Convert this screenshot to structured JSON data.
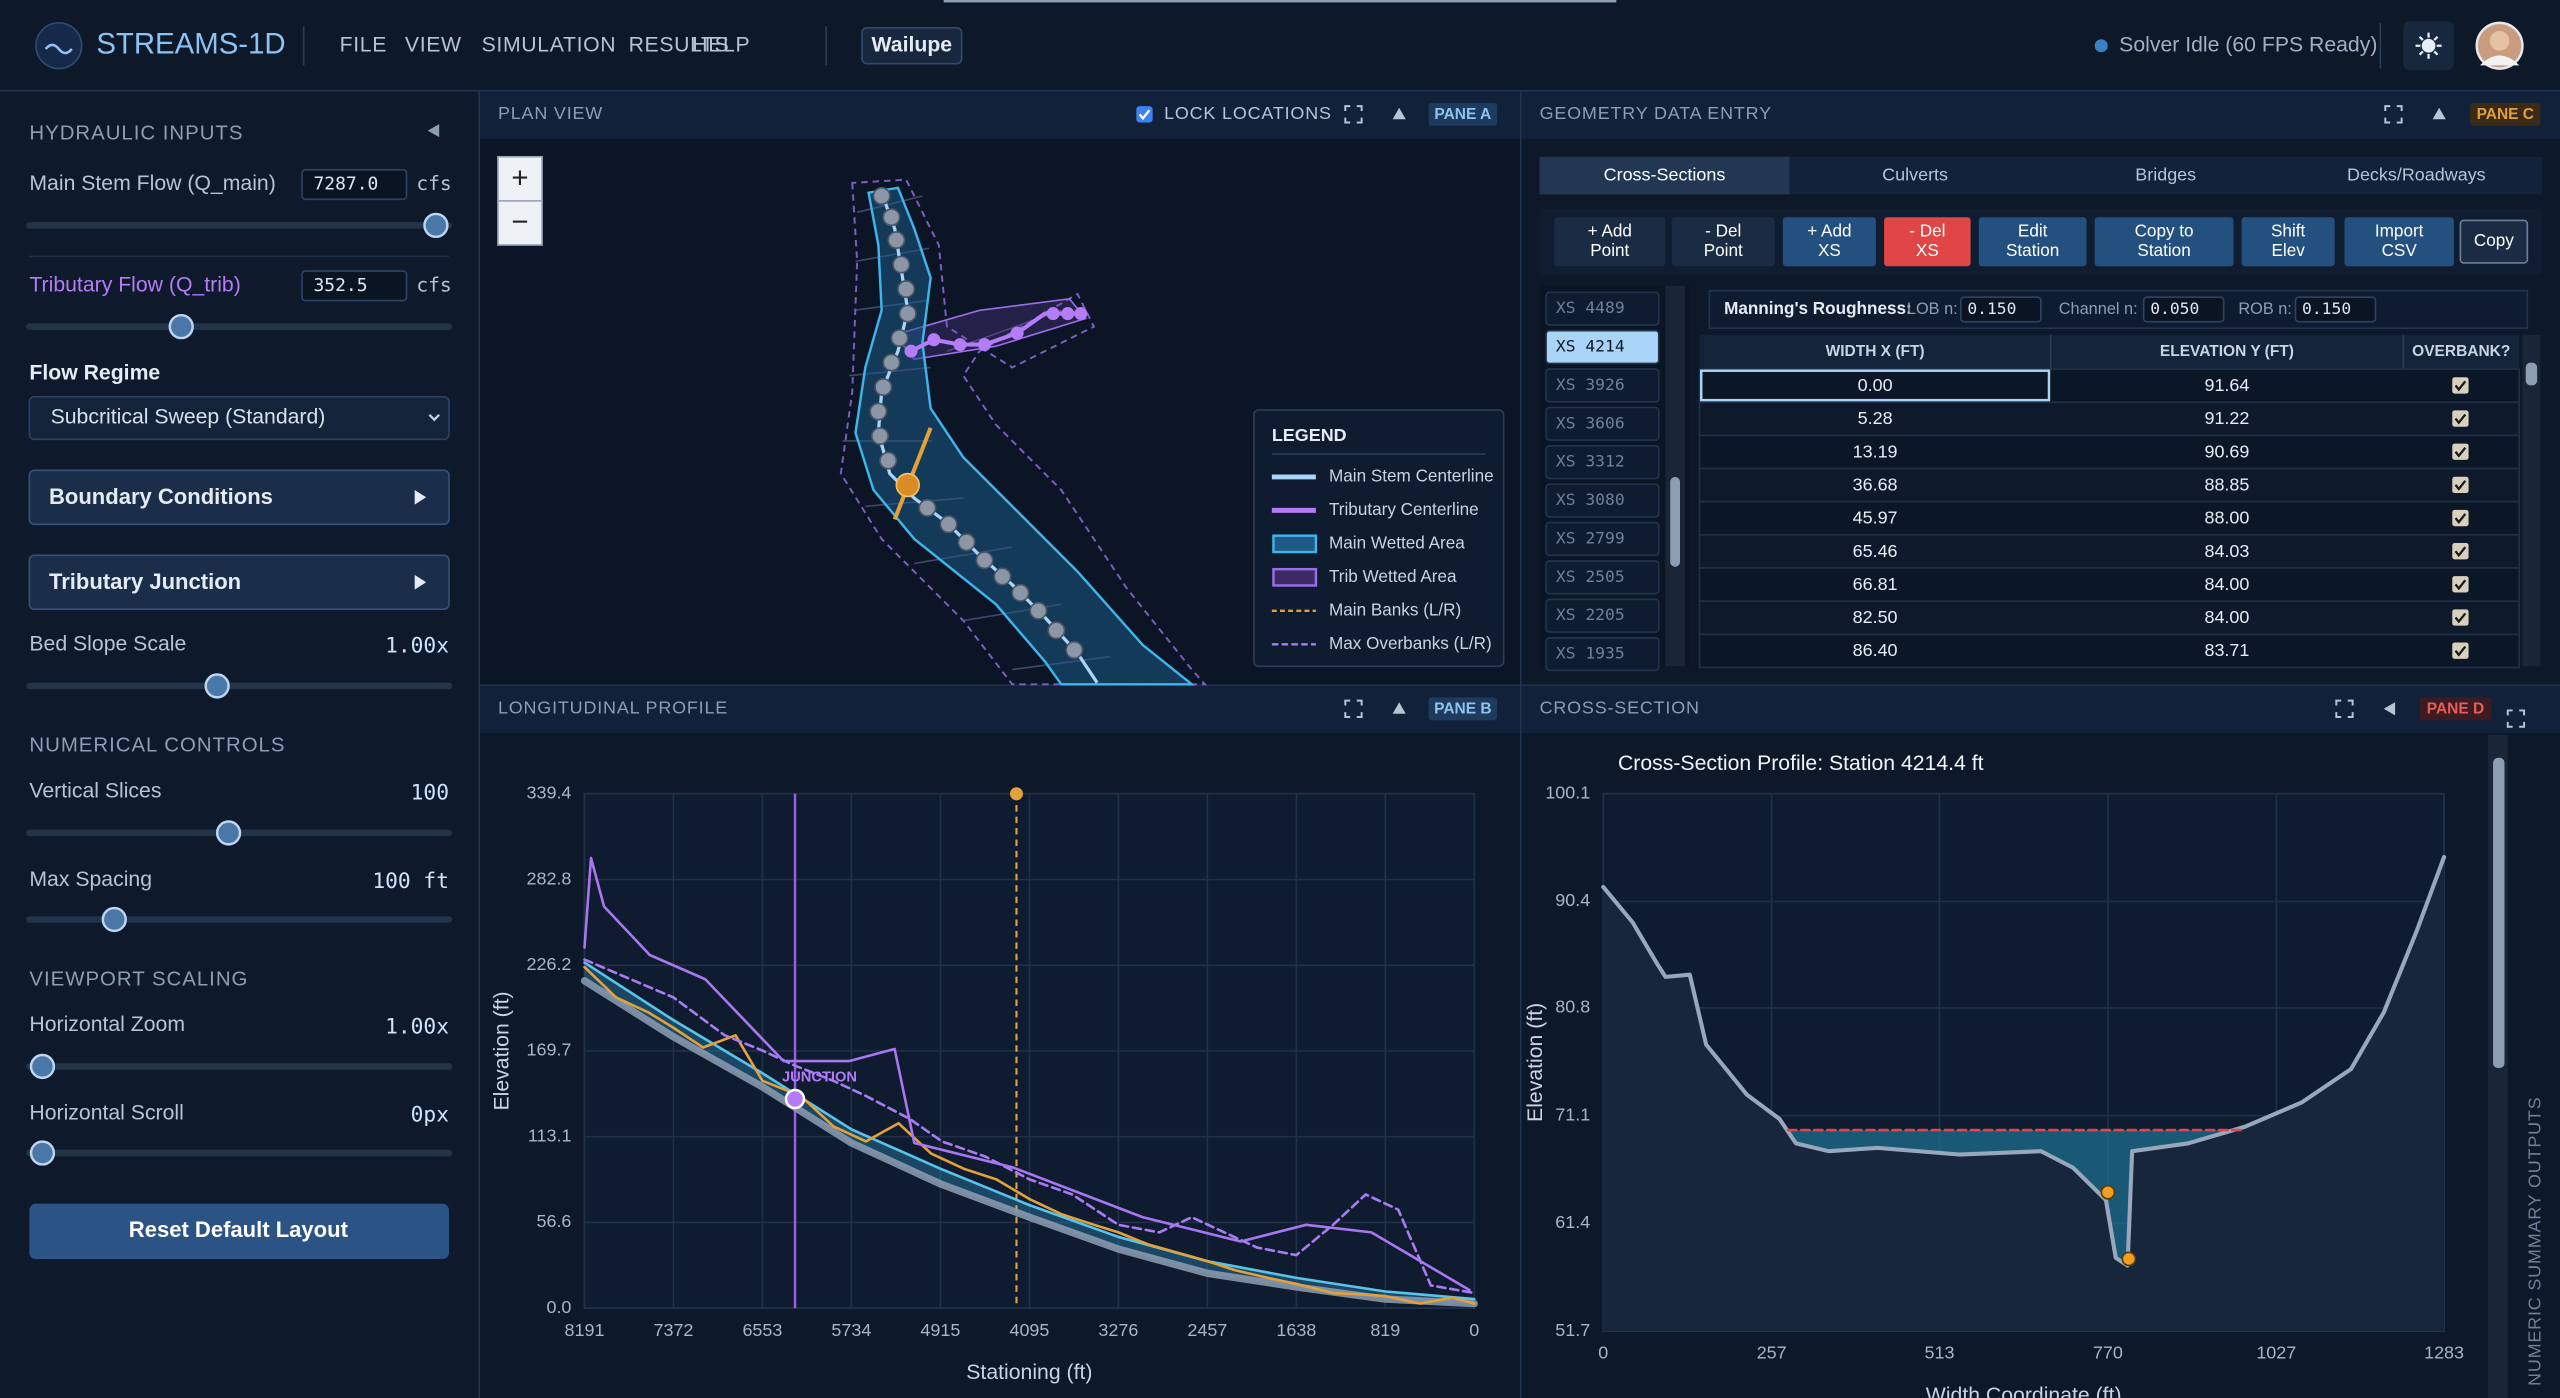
{
  "header": {
    "app_name": "STREAMS-1D",
    "menu": [
      "FILE",
      "VIEW",
      "SIMULATION",
      "RESULTS",
      "HELP"
    ],
    "project": "Wailupe",
    "status": "Solver Idle (60 FPS Ready)"
  },
  "sidebar": {
    "hydraulic_title": "HYDRAULIC INPUTS",
    "main_flow": {
      "label": "Main Stem Flow (Q_main)",
      "value": "7287.0",
      "unit": "cfs"
    },
    "trib_flow": {
      "label": "Tributary Flow (Q_trib)",
      "value": "352.5",
      "unit": "cfs"
    },
    "flow_regime": {
      "label": "Flow Regime",
      "value": "Subcritical Sweep (Standard)"
    },
    "boundary": "Boundary Conditions",
    "junction": "Tributary Junction",
    "bed_slope": {
      "label": "Bed Slope Scale",
      "value": "1.00x"
    },
    "numerical_title": "NUMERICAL CONTROLS",
    "vertical_slices": {
      "label": "Vertical Slices",
      "value": "100"
    },
    "max_spacing": {
      "label": "Max Spacing",
      "value": "100 ft"
    },
    "viewport_title": "VIEWPORT SCALING",
    "h_zoom": {
      "label": "Horizontal Zoom",
      "value": "1.00x"
    },
    "h_scroll": {
      "label": "Horizontal Scroll",
      "value": "0px"
    },
    "reset": "Reset Default Layout"
  },
  "plan": {
    "title": "PLAN VIEW",
    "lock": "LOCK LOCATIONS",
    "pane": "PANE A",
    "zoom_in": "+",
    "zoom_out": "−",
    "legend": {
      "title": "LEGEND",
      "items": [
        "Main Stem Centerline",
        "Tributary Centerline",
        "Main Wetted Area",
        "Trib Wetted Area",
        "Main Banks (L/R)",
        "Max Overbanks (L/R)"
      ]
    }
  },
  "geometry": {
    "title": "GEOMETRY DATA ENTRY",
    "pane": "PANE C",
    "tabs": [
      "Cross-Sections",
      "Culverts",
      "Bridges",
      "Decks/Roadways"
    ],
    "buttons": [
      [
        "+ Add",
        "Point"
      ],
      [
        "- Del",
        "Point"
      ],
      [
        "+ Add",
        "XS"
      ],
      [
        "- Del",
        "XS"
      ],
      [
        "Edit",
        "Station"
      ],
      [
        "Copy to",
        "Station"
      ],
      [
        "Shift",
        "Elev"
      ],
      [
        "Import",
        "CSV"
      ],
      [
        "Copy"
      ]
    ],
    "sections": [
      "XS 4489",
      "XS 4214",
      "XS 3926",
      "XS 3606",
      "XS 3312",
      "XS 3080",
      "XS 2799",
      "XS 2505",
      "XS 2205",
      "XS 1935"
    ],
    "roughness": {
      "label": "Manning's Roughness:",
      "lob_label": "LOB n:",
      "lob": "0.150",
      "channel_label": "Channel n:",
      "channel": "0.050",
      "rob_label": "ROB n:",
      "rob": "0.150"
    },
    "columns": [
      "WIDTH X (FT)",
      "ELEVATION Y (FT)",
      "OVERBANK?"
    ],
    "rows": [
      [
        "0.00",
        "91.64"
      ],
      [
        "5.28",
        "91.22"
      ],
      [
        "13.19",
        "90.69"
      ],
      [
        "36.68",
        "88.85"
      ],
      [
        "45.97",
        "88.00"
      ],
      [
        "65.46",
        "84.03"
      ],
      [
        "66.81",
        "84.00"
      ],
      [
        "82.50",
        "84.00"
      ],
      [
        "86.40",
        "83.71"
      ]
    ]
  },
  "profile": {
    "title": "LONGITUDINAL PROFILE",
    "pane": "PANE B",
    "chart": {
      "type": "line",
      "x_label": "Stationing (ft)",
      "y_label": "Elevation (ft)",
      "xlim": [
        8191,
        0
      ],
      "xticks": [
        8191,
        7372,
        6553,
        5734,
        4915,
        4095,
        3276,
        2457,
        1638,
        819,
        0
      ],
      "ylim": [
        0,
        339.4
      ],
      "yticks": [
        {
          "value": 0,
          "label": "0.0"
        },
        56.6,
        113.1,
        169.7,
        226.2,
        282.8,
        339.4
      ],
      "grid": true,
      "junction": {
        "label": "JUNCTION",
        "station": 6253,
        "elevation": 138
      },
      "section_station": 4214.4,
      "series": [
        {
          "style": "thick",
          "color": "#8d9db3",
          "x": [
            8191,
            7372,
            6553,
            5734,
            4915,
            4095,
            3276,
            2457,
            1638,
            819,
            0
          ],
          "values": [
            216,
            179,
            146,
            109,
            82,
            60,
            39,
            23,
            14,
            6,
            3
          ]
        },
        {
          "style": "solid",
          "color": "#58c4ec",
          "x": [
            8191,
            7372,
            6553,
            5734,
            4915,
            4095,
            3276,
            2457,
            1638,
            819,
            0
          ],
          "values": [
            228,
            190,
            155,
            118,
            92,
            68,
            47,
            31,
            20,
            11,
            6
          ]
        },
        {
          "style": "solid",
          "color": "#e2a13a",
          "x": [
            8191,
            7900,
            7600,
            7372,
            7100,
            6800,
            6553,
            6200,
            5900,
            5600,
            5300,
            5000,
            4700,
            4400,
            4095,
            3800,
            3500,
            3276,
            3000,
            2700,
            2457,
            2200,
            1900,
            1638,
            1300,
            1000,
            819,
            500,
            200,
            0
          ],
          "values": [
            225,
            205,
            195,
            185,
            172,
            180,
            150,
            140,
            120,
            110,
            122,
            102,
            92,
            85,
            72,
            62,
            55,
            50,
            42,
            36,
            31,
            25,
            20,
            16,
            10,
            9,
            8,
            3,
            7,
            3
          ]
        },
        {
          "style": "dashed",
          "color": "#a77cf2",
          "x": [
            8191,
            7700,
            7372,
            6900,
            6553,
            6253,
            5900,
            5600,
            5200,
            4900,
            4500,
            4095,
            3700,
            3276,
            2900,
            2600,
            2300,
            2000,
            1638,
            1300,
            1000,
            700,
            400,
            0
          ],
          "values": [
            230,
            215,
            205,
            180,
            170,
            160,
            150,
            140,
            125,
            110,
            100,
            85,
            75,
            55,
            50,
            60,
            50,
            40,
            35,
            55,
            75,
            65,
            15,
            10
          ]
        },
        {
          "style": "solid",
          "color": "#a877f0",
          "x": [
            8191,
            8131,
            8011,
            7590,
            7079,
            6358,
            5756,
            5336,
            5155,
            4253,
            3051,
            2149,
            1548,
            947,
            45
          ],
          "values": [
            238,
            297,
            265,
            233,
            217,
            163,
            163,
            171,
            109,
            93,
            60,
            44,
            55,
            50,
            12
          ]
        }
      ]
    }
  },
  "section": {
    "title": "CROSS-SECTION",
    "pane": "PANE D",
    "side_label": "NUMERIC SUMMARY OUTPUTS",
    "chart": {
      "type": "line",
      "title": "Cross-Section Profile: Station 4214.4 ft",
      "x_label": "Width Coordinate (ft)",
      "y_label": "Elevation (ft)",
      "xlim": [
        0,
        1283
      ],
      "xticks": [
        0,
        257,
        513,
        770,
        1027,
        1283
      ],
      "ylim": [
        51.7,
        100.1
      ],
      "yticks": [
        51.7,
        61.4,
        71.1,
        80.8,
        90.4,
        100.1
      ],
      "grid": true,
      "series": [
        {
          "style": "medium",
          "color": "#97a7bc",
          "x": [
            0,
            45,
            82,
            95,
            132,
            157,
            219,
            269,
            294,
            344,
            418,
            543,
            668,
            717,
            767,
            782,
            800,
            807,
            892,
            979,
            1066,
            1141,
            1191,
            1241,
            1283
          ],
          "values": [
            91.7,
            88.5,
            84.8,
            83.6,
            83.8,
            77.5,
            73.0,
            70.8,
            68.6,
            67.9,
            68.2,
            67.6,
            67.9,
            66.4,
            63.5,
            58.3,
            57.6,
            67.9,
            68.6,
            70.1,
            72.3,
            75.3,
            80.4,
            87.7,
            94.4
          ]
        },
        {
          "style": "dashed",
          "color": "#e0454a",
          "x": [
            282,
            979
          ],
          "values": [
            69.8,
            69.8
          ]
        },
        {
          "style": "markers",
          "color": "#f0a020",
          "x": [
            770,
            802
          ],
          "values": [
            64.2,
            58.2
          ]
        }
      ]
    }
  }
}
